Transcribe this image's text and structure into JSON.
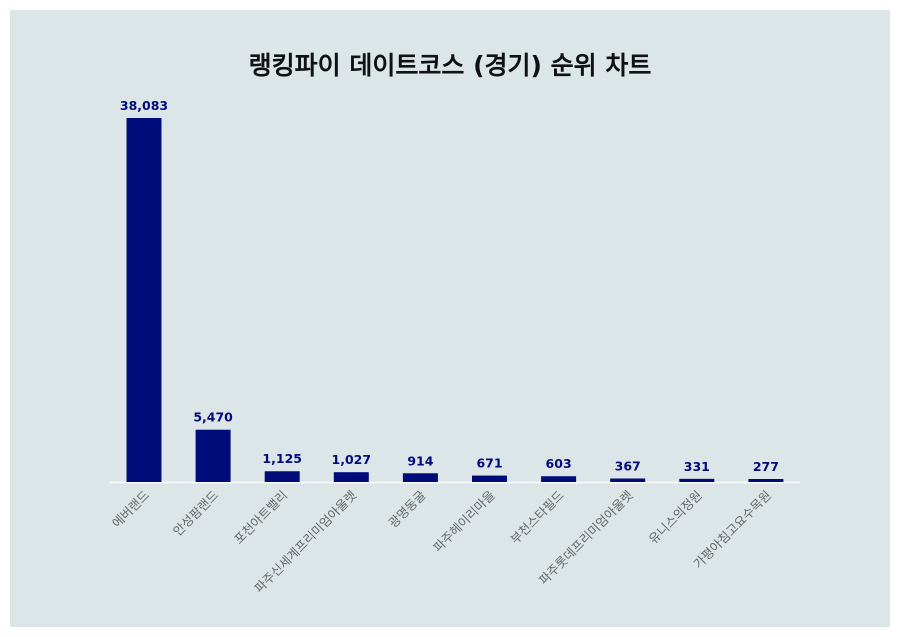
{
  "chart_data": {
    "type": "bar",
    "title": "랭킹파이 데이트코스 (경기) 순위 차트",
    "xlabel": "",
    "ylabel": "",
    "categories": [
      "에버랜드",
      "안성팜랜드",
      "포천아트밸리",
      "파주신세계프리미엄아울렛",
      "광명동굴",
      "파주헤이리마을",
      "부천스타필드",
      "파주롯데프리미엄아울렛",
      "유니스의정원",
      "가평아침고요수목원"
    ],
    "values": [
      38083,
      5470,
      1125,
      1027,
      914,
      671,
      603,
      367,
      331,
      277
    ],
    "value_labels": [
      "38,083",
      "5,470",
      "1,125",
      "1,027",
      "914",
      "671",
      "603",
      "367",
      "331",
      "277"
    ],
    "ylim": [
      0,
      38083
    ],
    "grid": false,
    "colors": {
      "bar": "#000c7a",
      "label": "#000c7a",
      "tick": "#666666",
      "axis": "#ffffff"
    }
  }
}
